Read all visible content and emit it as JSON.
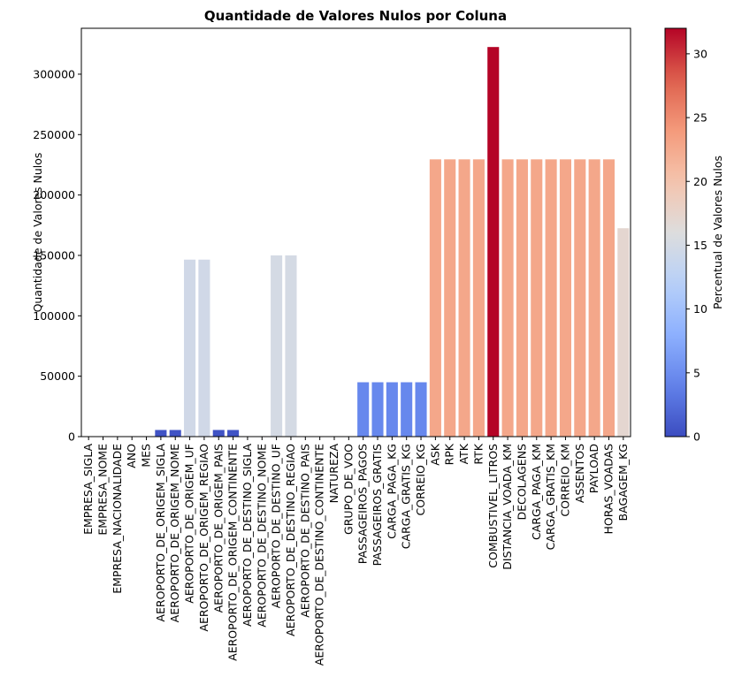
{
  "chart_data": {
    "type": "bar",
    "title": "Quantidade de Valores Nulos por Coluna",
    "xlabel": "",
    "ylabel": "Quantidade de Valores Nulos",
    "ylim": [
      0,
      338000
    ],
    "yticks": [
      0,
      50000,
      100000,
      150000,
      200000,
      250000,
      300000
    ],
    "grid": false,
    "categories": [
      "EMPRESA_SIGLA",
      "EMPRESA_NOME",
      "EMPRESA_NACIONALIDADE",
      "ANO",
      "MES",
      "AEROPORTO_DE_ORIGEM_SIGLA",
      "AEROPORTO_DE_ORIGEM_NOME",
      "AEROPORTO_DE_ORIGEM_UF",
      "AEROPORTO_DE_ORIGEM_REGIAO",
      "AEROPORTO_DE_ORIGEM_PAIS",
      "AEROPORTO_DE_ORIGEM_CONTINENTE",
      "AEROPORTO_DE_DESTINO_SIGLA",
      "AEROPORTO_DE_DESTINO_NOME",
      "AEROPORTO_DE_DESTINO_UF",
      "AEROPORTO_DE_DESTINO_REGIAO",
      "AEROPORTO_DE_DESTINO_PAIS",
      "AEROPORTO_DE_DESTINO_CONTINENTE",
      "NATUREZA",
      "GRUPO_DE_VOO",
      "PASSAGEIROS_PAGOS",
      "PASSAGEIROS_GRATIS",
      "CARGA_PAGA_KG",
      "CARGA_GRATIS_KG",
      "CORREIO_KG",
      "ASK",
      "RPK",
      "ATK",
      "RTK",
      "COMBUSTIVEL_LITROS",
      "DISTANCIA_VOADA_KM",
      "DECOLAGENS",
      "CARGA_PAGA_KM",
      "CARGA_GRATIS_KM",
      "CORREIO_KM",
      "ASSENTOS",
      "PAYLOAD",
      "HORAS_VOADAS",
      "BAGAGEM_KG"
    ],
    "values": [
      0,
      0,
      0,
      0,
      0,
      5500,
      5500,
      146500,
      146500,
      5500,
      5500,
      0,
      0,
      150000,
      150000,
      0,
      0,
      0,
      0,
      45000,
      45000,
      45000,
      45000,
      45000,
      229500,
      229500,
      229500,
      229500,
      322500,
      229500,
      229500,
      229500,
      229500,
      229500,
      229500,
      229500,
      229500,
      172500
    ],
    "percent": [
      0,
      0,
      0,
      0,
      0,
      0.5,
      0.5,
      14.6,
      14.6,
      0.5,
      0.5,
      0,
      0,
      15.0,
      15.0,
      0,
      0,
      0,
      0,
      4.5,
      4.5,
      4.5,
      4.5,
      4.5,
      22.8,
      22.8,
      22.8,
      22.8,
      32.0,
      22.8,
      22.8,
      22.8,
      22.8,
      22.8,
      22.8,
      22.8,
      22.8,
      17.1
    ],
    "colorbar": {
      "label": "Percentual de Valores Nulos",
      "range": [
        0,
        32
      ],
      "ticks": [
        0,
        5,
        10,
        15,
        20,
        25,
        30
      ],
      "colormap": "coolwarm"
    }
  }
}
